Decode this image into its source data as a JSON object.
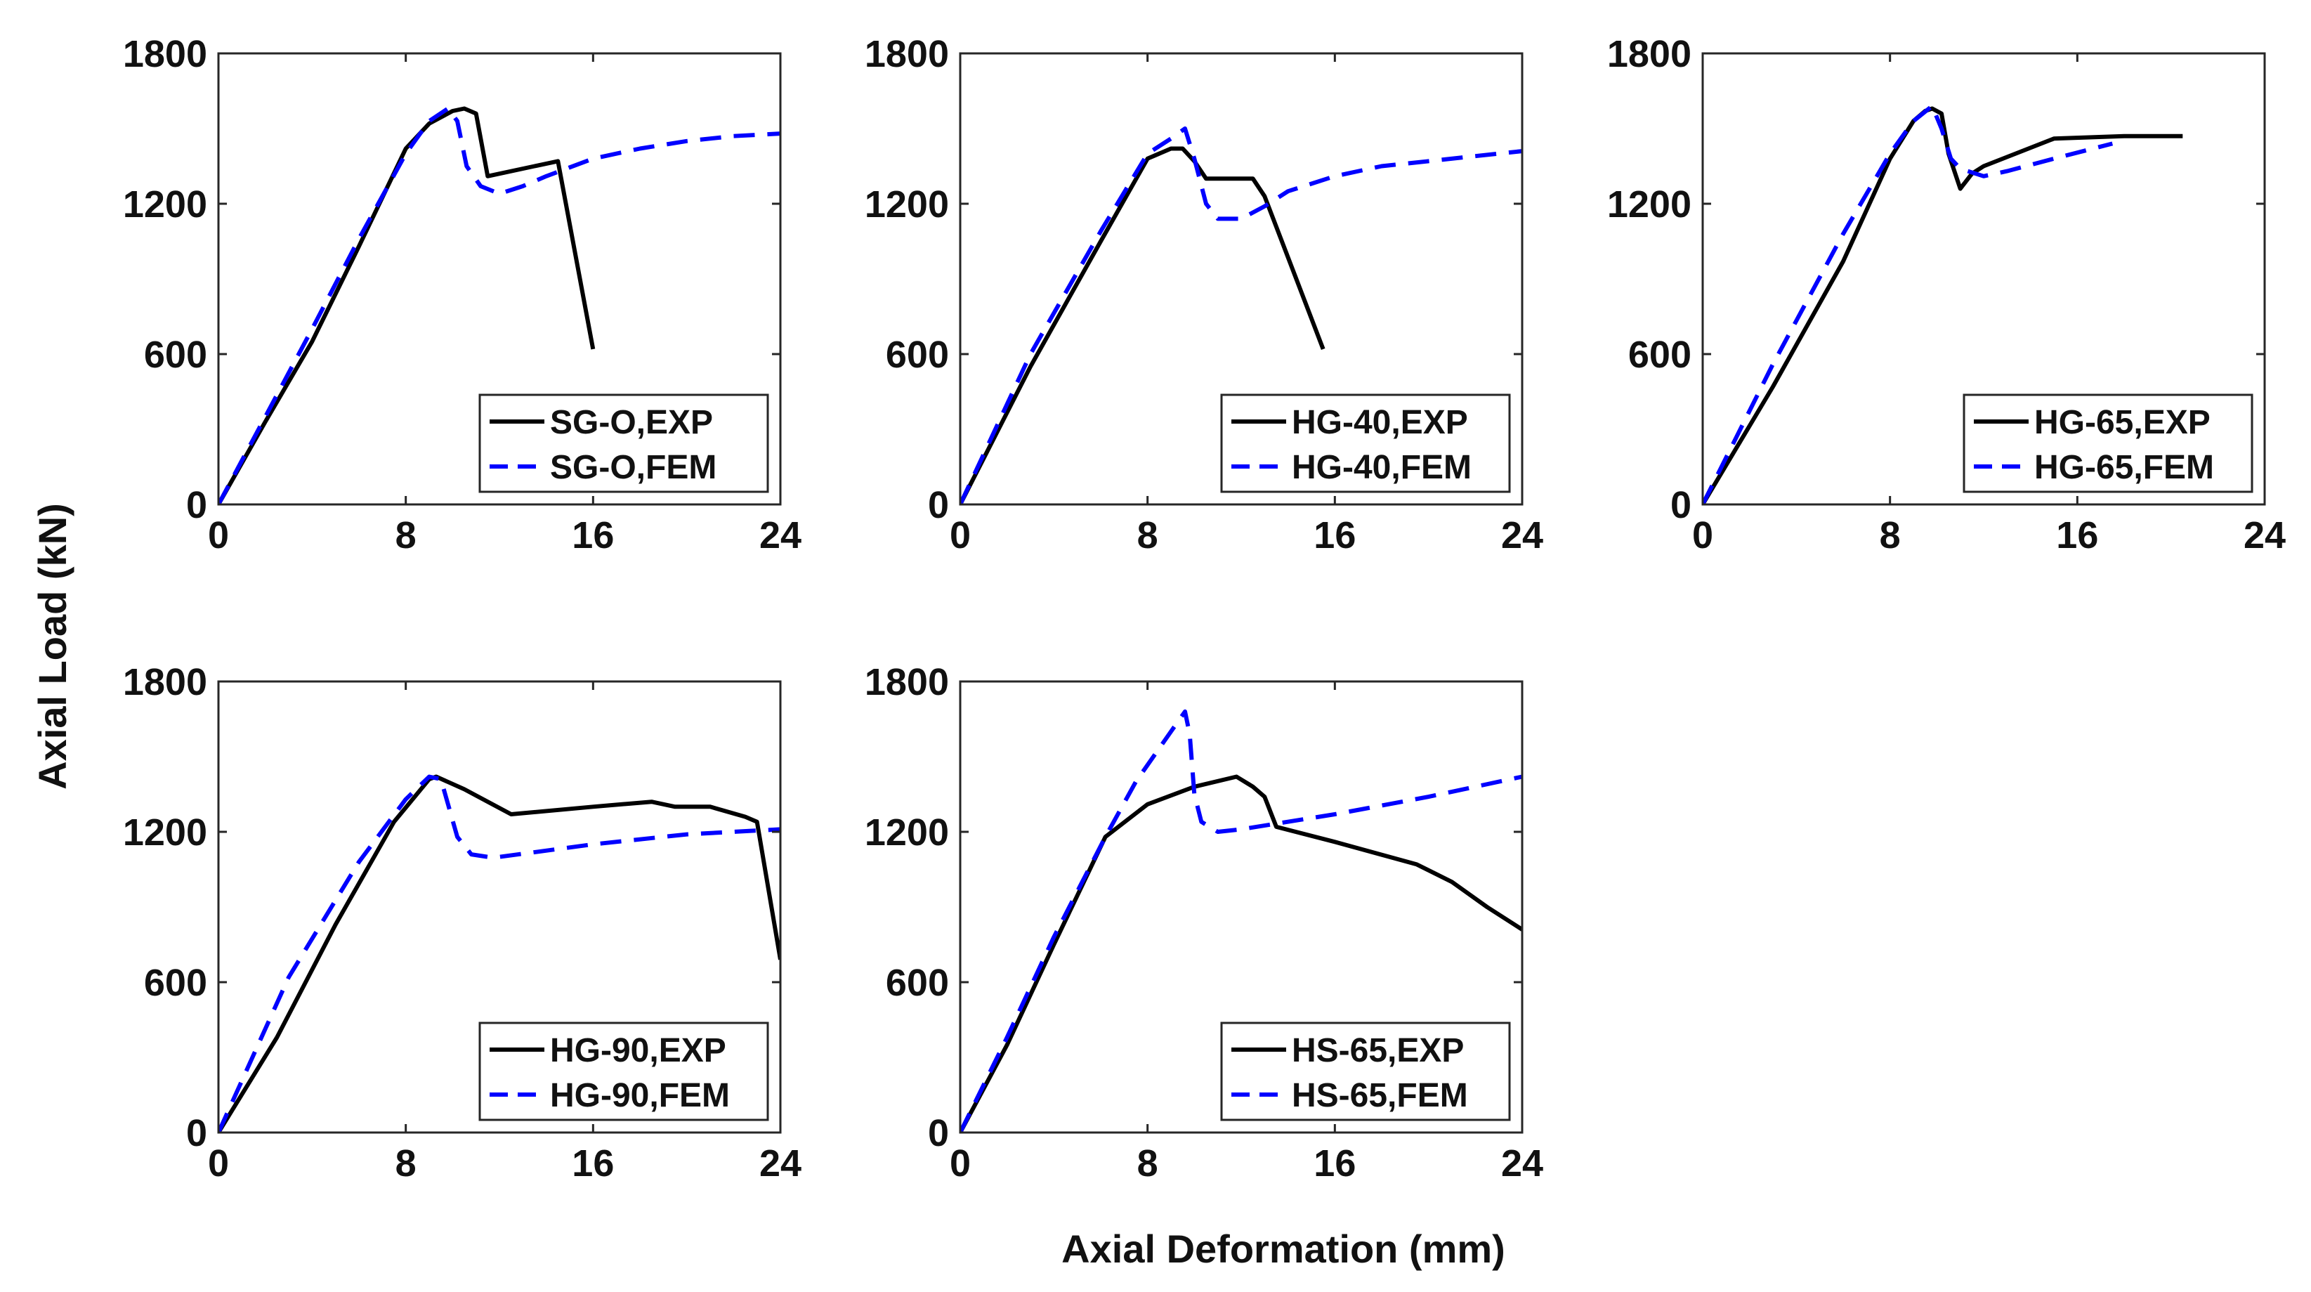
{
  "figure": {
    "shared_xlabel": "Axial Deformation (mm)",
    "shared_ylabel": "Axial Load (kN)"
  },
  "chart_data": [
    {
      "type": "line",
      "xlim": [
        0,
        24
      ],
      "ylim": [
        0,
        1800
      ],
      "xticks": [
        "0",
        "8",
        "16",
        "24"
      ],
      "yticks": [
        "0",
        "600",
        "1200",
        "1800"
      ],
      "legend_position": "bottom-right",
      "series": [
        {
          "name": "SG-O,EXP",
          "style": "solid",
          "color": "#000000",
          "x": [
            0,
            2,
            4,
            6,
            8,
            9,
            10,
            10.5,
            11,
            11.5,
            13.5,
            14.5,
            16
          ],
          "y": [
            0,
            330,
            650,
            1030,
            1420,
            1520,
            1570,
            1580,
            1560,
            1310,
            1350,
            1370,
            620
          ]
        },
        {
          "name": "SG-O,FEM",
          "style": "dashed",
          "color": "#0000ff",
          "x": [
            0,
            2,
            4,
            6,
            8,
            9,
            9.8,
            10.2,
            10.6,
            11.2,
            12,
            13,
            14,
            16,
            18,
            20,
            22,
            24
          ],
          "y": [
            0,
            350,
            700,
            1060,
            1400,
            1530,
            1580,
            1530,
            1350,
            1270,
            1240,
            1270,
            1310,
            1380,
            1420,
            1450,
            1470,
            1480
          ]
        }
      ]
    },
    {
      "type": "line",
      "xlim": [
        0,
        24
      ],
      "ylim": [
        0,
        1800
      ],
      "xticks": [
        "0",
        "8",
        "16",
        "24"
      ],
      "yticks": [
        "0",
        "600",
        "1200",
        "1800"
      ],
      "legend_position": "bottom-right",
      "series": [
        {
          "name": "HG-40,EXP",
          "style": "solid",
          "color": "#000000",
          "x": [
            0,
            3,
            6,
            8,
            9,
            9.5,
            10,
            10.5,
            12.5,
            13,
            15.5
          ],
          "y": [
            0,
            550,
            1050,
            1380,
            1420,
            1420,
            1370,
            1300,
            1300,
            1230,
            620
          ]
        },
        {
          "name": "HG-40,FEM",
          "style": "dashed",
          "color": "#0000ff",
          "x": [
            0,
            3,
            6,
            8,
            9,
            9.6,
            10,
            10.5,
            11,
            12,
            13,
            14,
            16,
            18,
            20,
            22,
            24
          ],
          "y": [
            0,
            600,
            1090,
            1400,
            1460,
            1500,
            1380,
            1200,
            1140,
            1140,
            1190,
            1250,
            1310,
            1350,
            1370,
            1390,
            1410
          ]
        }
      ]
    },
    {
      "type": "line",
      "xlim": [
        0,
        24
      ],
      "ylim": [
        0,
        1800
      ],
      "xticks": [
        "0",
        "8",
        "16",
        "24"
      ],
      "yticks": [
        "0",
        "600",
        "1200",
        "1800"
      ],
      "legend_position": "bottom-right",
      "series": [
        {
          "name": "HG-65,EXP",
          "style": "solid",
          "color": "#000000",
          "x": [
            0,
            3,
            6,
            8,
            9,
            9.5,
            9.8,
            10.2,
            10.5,
            11,
            11.5,
            12,
            15,
            18,
            20.5
          ],
          "y": [
            0,
            470,
            970,
            1380,
            1530,
            1570,
            1580,
            1560,
            1400,
            1260,
            1320,
            1350,
            1460,
            1470,
            1470
          ]
        },
        {
          "name": "HG-65,FEM",
          "style": "dashed",
          "color": "#0000ff",
          "x": [
            0,
            3,
            6,
            8,
            9,
            9.8,
            10.2,
            10.6,
            11,
            12,
            13,
            15,
            17.5
          ],
          "y": [
            0,
            560,
            1080,
            1400,
            1530,
            1590,
            1500,
            1380,
            1340,
            1310,
            1330,
            1380,
            1440
          ]
        }
      ]
    },
    {
      "type": "line",
      "xlim": [
        0,
        24
      ],
      "ylim": [
        0,
        1800
      ],
      "xticks": [
        "0",
        "8",
        "16",
        "24"
      ],
      "yticks": [
        "0",
        "600",
        "1200",
        "1800"
      ],
      "legend_position": "bottom-right",
      "series": [
        {
          "name": "HG-90,EXP",
          "style": "solid",
          "color": "#000000",
          "x": [
            0,
            2.5,
            5,
            7.5,
            9,
            9.3,
            10.5,
            12.5,
            16,
            18.5,
            19.5,
            21,
            22.5,
            23,
            24
          ],
          "y": [
            0,
            380,
            830,
            1240,
            1410,
            1420,
            1370,
            1270,
            1300,
            1320,
            1300,
            1300,
            1260,
            1240,
            690
          ]
        },
        {
          "name": "HG-90,FEM",
          "style": "dashed",
          "color": "#0000ff",
          "x": [
            0,
            3,
            6,
            8,
            9,
            9.5,
            10.2,
            10.8,
            11.5,
            12,
            16,
            20,
            24
          ],
          "y": [
            0,
            620,
            1080,
            1330,
            1420,
            1410,
            1180,
            1110,
            1100,
            1100,
            1150,
            1190,
            1210
          ]
        }
      ]
    },
    {
      "type": "line",
      "xlim": [
        0,
        24
      ],
      "ylim": [
        0,
        1800
      ],
      "xticks": [
        "0",
        "8",
        "16",
        "24"
      ],
      "yticks": [
        "0",
        "600",
        "1200",
        "1800"
      ],
      "legend_position": "bottom-right",
      "series": [
        {
          "name": "HS-65,EXP",
          "style": "solid",
          "color": "#000000",
          "x": [
            0,
            2,
            4,
            6.2,
            8,
            10,
            11.8,
            12.5,
            13,
            13.5,
            16,
            19.5,
            21,
            22.5,
            24
          ],
          "y": [
            0,
            350,
            750,
            1180,
            1310,
            1380,
            1420,
            1380,
            1340,
            1220,
            1160,
            1070,
            1000,
            900,
            810
          ]
        },
        {
          "name": "HS-65,FEM",
          "style": "dashed",
          "color": "#0000ff",
          "x": [
            0,
            2,
            4,
            6.2,
            7.5,
            9,
            9.6,
            9.8,
            10,
            10.3,
            11,
            12,
            16,
            20,
            24
          ],
          "y": [
            0,
            380,
            780,
            1180,
            1400,
            1600,
            1680,
            1590,
            1350,
            1240,
            1200,
            1210,
            1270,
            1340,
            1420
          ]
        }
      ]
    }
  ]
}
